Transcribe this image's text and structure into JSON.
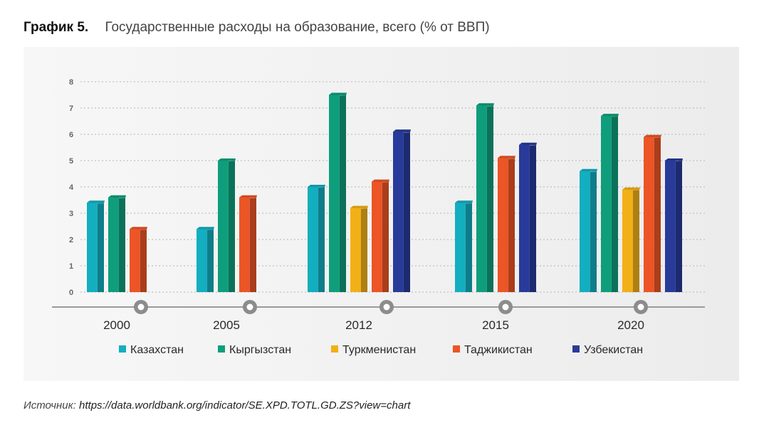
{
  "header": {
    "label": "График 5.",
    "title": "Государственные расходы на образование, всего (% от ВВП)"
  },
  "source": {
    "label": "Источник:",
    "url": "https://data.worldbank.org/indicator/SE.XPD.TOTL.GD.ZS?view=chart"
  },
  "colors": {
    "Казахстан": "#13aebf",
    "Кыргызстан": "#0f9e7c",
    "Туркменистан": "#f2b017",
    "Таджикистан": "#ec5526",
    "Узбекистан": "#283b9a",
    "grid": "#c9c9c9",
    "axis": "#9a9a9a",
    "tick_text": "#666666"
  },
  "chart_data": {
    "type": "bar",
    "categories": [
      "2000",
      "2005",
      "2012",
      "2015",
      "2020"
    ],
    "ylim": [
      0,
      8
    ],
    "yticks": [
      "0",
      "1",
      "2",
      "3",
      "4",
      "5",
      "6",
      "7",
      "8"
    ],
    "grid": true,
    "legend_position": "bottom",
    "series": [
      {
        "name": "Казахстан",
        "values": [
          3.4,
          2.4,
          4.0,
          3.4,
          4.6
        ]
      },
      {
        "name": "Кыргызстан",
        "values": [
          3.6,
          5.0,
          7.5,
          7.1,
          6.7
        ]
      },
      {
        "name": "Туркменистан",
        "values": [
          null,
          null,
          3.2,
          null,
          3.9
        ]
      },
      {
        "name": "Таджикистан",
        "values": [
          2.4,
          3.6,
          4.2,
          5.1,
          5.9
        ]
      },
      {
        "name": "Узбекистан",
        "values": [
          null,
          null,
          6.1,
          5.6,
          5.0
        ]
      }
    ]
  }
}
